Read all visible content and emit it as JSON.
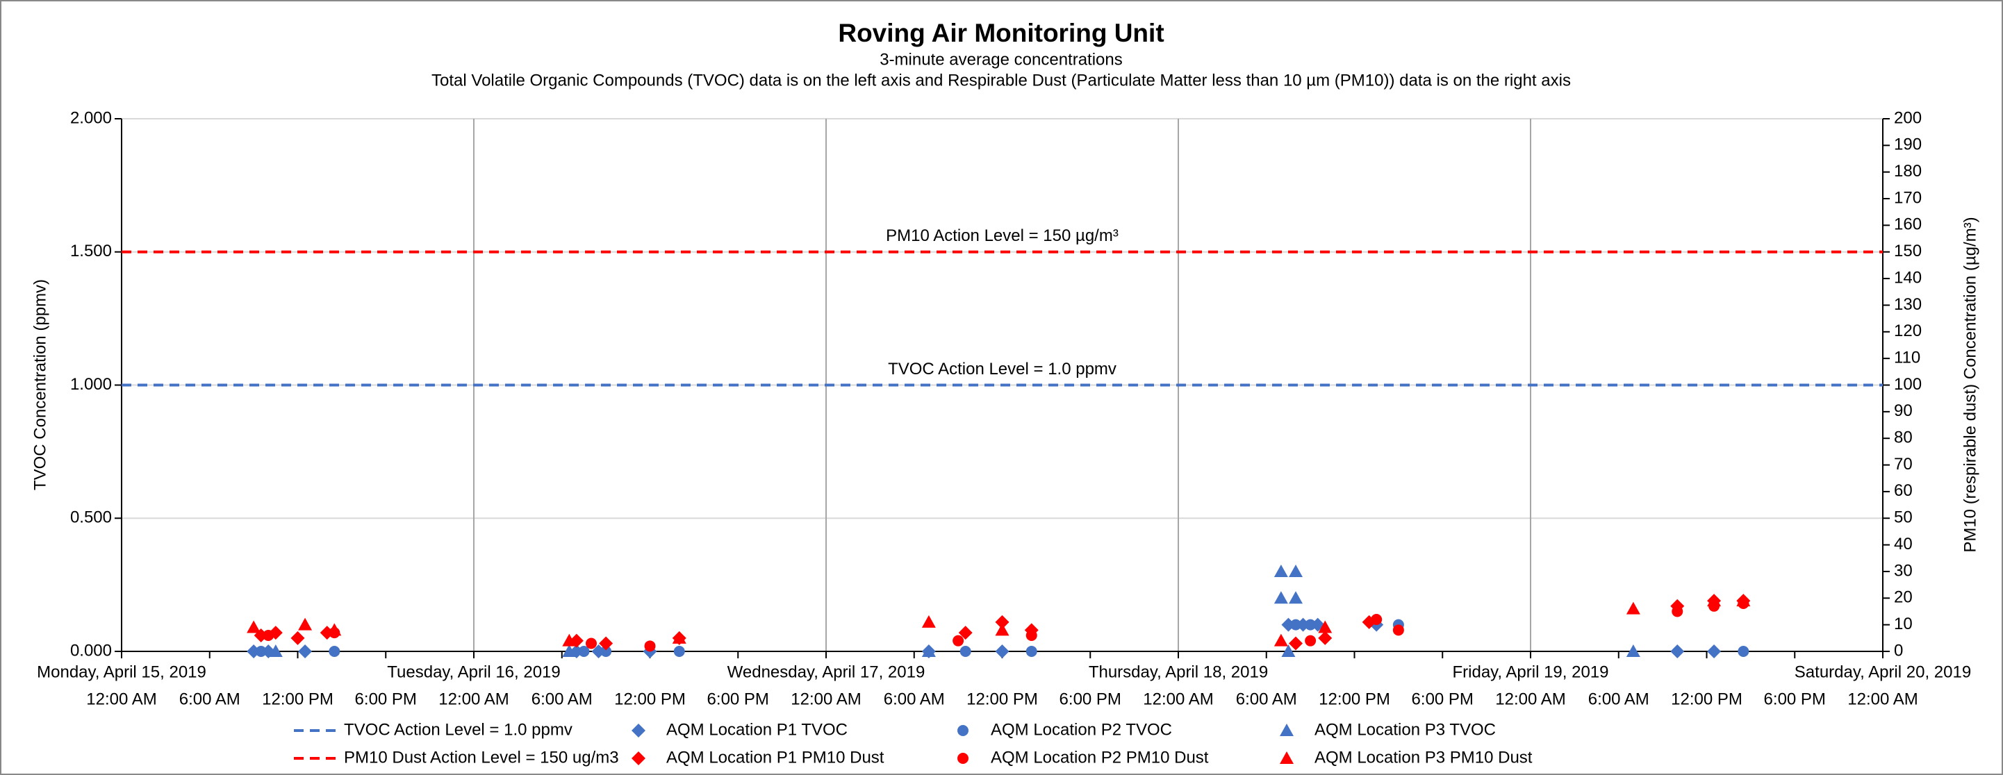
{
  "chart_data": {
    "type": "scatter",
    "title": "Roving Air Monitoring Unit",
    "subtitle": "3-minute average concentrations",
    "subtitle2": "Total Volatile Organic Compounds (TVOC) data is on the left axis and Respirable Dust (Particulate Matter less than 10 µm (PM10)) data is on the right axis",
    "y_label": "TVOC Concentration (ppmv)",
    "y2_label": "PM10 (respirable dust) Concentration (µg/m³)",
    "xlim": [
      "2019-04-15T00:00",
      "2019-04-20T00:00"
    ],
    "ylim": [
      0,
      2
    ],
    "y2lim": [
      0,
      200
    ],
    "grid": true,
    "yticks": [
      {
        "value": 0,
        "label": "0.000"
      },
      {
        "value": 0.5,
        "label": "0.500"
      },
      {
        "value": 1,
        "label": "1.000"
      },
      {
        "value": 1.5,
        "label": "1.500"
      },
      {
        "value": 2,
        "label": "2.000"
      }
    ],
    "y2ticks": [
      0,
      10,
      20,
      30,
      40,
      50,
      60,
      70,
      80,
      90,
      100,
      110,
      120,
      130,
      140,
      150,
      160,
      170,
      180,
      190,
      200
    ],
    "day_labels": [
      {
        "value": "2019-04-15T00:00",
        "label": "Monday, April 15, 2019"
      },
      {
        "value": "2019-04-16T00:00",
        "label": "Tuesday, April 16, 2019"
      },
      {
        "value": "2019-04-17T00:00",
        "label": "Wednesday, April 17, 2019"
      },
      {
        "value": "2019-04-18T00:00",
        "label": "Thursday, April 18, 2019"
      },
      {
        "value": "2019-04-19T00:00",
        "label": "Friday, April 19, 2019"
      },
      {
        "value": "2019-04-20T00:00",
        "label": "Saturday, April 20, 2019"
      }
    ],
    "xticks": [
      {
        "value": "2019-04-15T00:00",
        "label": "12:00 AM"
      },
      {
        "value": "2019-04-15T06:00",
        "label": "6:00 AM"
      },
      {
        "value": "2019-04-15T12:00",
        "label": "12:00 PM"
      },
      {
        "value": "2019-04-15T18:00",
        "label": "6:00 PM"
      },
      {
        "value": "2019-04-16T00:00",
        "label": "12:00 AM"
      },
      {
        "value": "2019-04-16T06:00",
        "label": "6:00 AM"
      },
      {
        "value": "2019-04-16T12:00",
        "label": "12:00 PM"
      },
      {
        "value": "2019-04-16T18:00",
        "label": "6:00 PM"
      },
      {
        "value": "2019-04-17T00:00",
        "label": "12:00 AM"
      },
      {
        "value": "2019-04-17T06:00",
        "label": "6:00 AM"
      },
      {
        "value": "2019-04-17T12:00",
        "label": "12:00 PM"
      },
      {
        "value": "2019-04-17T18:00",
        "label": "6:00 PM"
      },
      {
        "value": "2019-04-18T00:00",
        "label": "12:00 AM"
      },
      {
        "value": "2019-04-18T06:00",
        "label": "6:00 AM"
      },
      {
        "value": "2019-04-18T12:00",
        "label": "12:00 PM"
      },
      {
        "value": "2019-04-18T18:00",
        "label": "6:00 PM"
      },
      {
        "value": "2019-04-19T00:00",
        "label": "12:00 AM"
      },
      {
        "value": "2019-04-19T06:00",
        "label": "6:00 AM"
      },
      {
        "value": "2019-04-19T12:00",
        "label": "12:00 PM"
      },
      {
        "value": "2019-04-19T18:00",
        "label": "6:00 PM"
      },
      {
        "value": "2019-04-20T00:00",
        "label": "12:00 AM"
      }
    ],
    "reference_lines": [
      {
        "name": "TVOC Action Level = 1.0 ppmv",
        "label": "TVOC Action Level = 1.0 ppmv",
        "value": 1,
        "axis": "y",
        "color": "#4472c4"
      },
      {
        "name": "PM10 Dust Action Level = 150 ug/m3",
        "label": "PM10 Action Level = 150 µg/m³",
        "value": 150,
        "axis": "y2",
        "color": "#ff0000"
      }
    ],
    "series": [
      {
        "name": "AQM Location P1 TVOC",
        "color": "#4472c4",
        "marker": "diamond",
        "axis": "y",
        "x": [
          "2019-04-15T09:00",
          "2019-04-15T10:00",
          "2019-04-15T12:30",
          "2019-04-16T07:00",
          "2019-04-16T08:30",
          "2019-04-16T12:00",
          "2019-04-17T07:00",
          "2019-04-17T12:00",
          "2019-04-18T07:30",
          "2019-04-18T08:30",
          "2019-04-18T09:30",
          "2019-04-18T13:30",
          "2019-04-19T10:00",
          "2019-04-19T12:30"
        ],
        "values": [
          0,
          0,
          0,
          0,
          0,
          0,
          0,
          0,
          0.1,
          0.1,
          0.1,
          0.1,
          0,
          0
        ]
      },
      {
        "name": "AQM Location P2 TVOC",
        "color": "#4472c4",
        "marker": "circle",
        "axis": "y",
        "x": [
          "2019-04-15T09:30",
          "2019-04-15T14:30",
          "2019-04-16T07:30",
          "2019-04-16T09:00",
          "2019-04-16T14:00",
          "2019-04-17T09:30",
          "2019-04-17T14:00",
          "2019-04-18T08:00",
          "2019-04-18T09:00",
          "2019-04-18T15:00",
          "2019-04-19T14:30"
        ],
        "values": [
          0,
          0,
          0,
          0,
          0,
          0,
          0,
          0.1,
          0.1,
          0.1,
          0
        ]
      },
      {
        "name": "AQM Location P3 TVOC",
        "color": "#4472c4",
        "marker": "triangle",
        "axis": "y",
        "x": [
          "2019-04-15T10:30",
          "2019-04-16T06:30",
          "2019-04-17T07:00",
          "2019-04-18T07:00",
          "2019-04-18T07:00",
          "2019-04-18T08:00",
          "2019-04-18T08:00",
          "2019-04-18T07:30",
          "2019-04-19T07:00"
        ],
        "values": [
          0,
          0,
          0,
          0.3,
          0.2,
          0.3,
          0.2,
          0,
          0
        ]
      },
      {
        "name": "AQM Location P1 PM10 Dust",
        "color": "#ff0000",
        "marker": "diamond",
        "axis": "y2",
        "x": [
          "2019-04-15T09:30",
          "2019-04-15T10:30",
          "2019-04-15T12:00",
          "2019-04-15T14:00",
          "2019-04-16T07:00",
          "2019-04-16T09:00",
          "2019-04-16T14:00",
          "2019-04-17T09:30",
          "2019-04-17T12:00",
          "2019-04-17T14:00",
          "2019-04-18T08:00",
          "2019-04-18T10:00",
          "2019-04-18T13:00",
          "2019-04-19T10:00",
          "2019-04-19T12:30",
          "2019-04-19T14:30"
        ],
        "values": [
          6,
          7,
          5,
          7,
          4,
          3,
          5,
          7,
          11,
          8,
          3,
          5,
          11,
          17,
          19,
          19
        ]
      },
      {
        "name": "AQM Location P2 PM10 Dust",
        "color": "#ff0000",
        "marker": "circle",
        "axis": "y2",
        "x": [
          "2019-04-15T10:00",
          "2019-04-15T14:30",
          "2019-04-16T08:00",
          "2019-04-16T12:00",
          "2019-04-17T09:00",
          "2019-04-17T14:00",
          "2019-04-18T09:00",
          "2019-04-18T13:30",
          "2019-04-18T15:00",
          "2019-04-19T10:00",
          "2019-04-19T12:30",
          "2019-04-19T14:30"
        ],
        "values": [
          6,
          7,
          3,
          2,
          4,
          6,
          4,
          12,
          8,
          15,
          17,
          18
        ]
      },
      {
        "name": "AQM Location P3 PM10 Dust",
        "color": "#ff0000",
        "marker": "triangle",
        "axis": "y2",
        "x": [
          "2019-04-15T09:00",
          "2019-04-15T12:30",
          "2019-04-15T14:30",
          "2019-04-16T06:30",
          "2019-04-16T14:00",
          "2019-04-17T07:00",
          "2019-04-17T12:00",
          "2019-04-18T07:00",
          "2019-04-18T10:00",
          "2019-04-19T07:00",
          "2019-04-19T12:30",
          "2019-04-19T14:30"
        ],
        "values": [
          9,
          10,
          8,
          4,
          5,
          11,
          8,
          4,
          9,
          16,
          19,
          19
        ]
      }
    ]
  }
}
